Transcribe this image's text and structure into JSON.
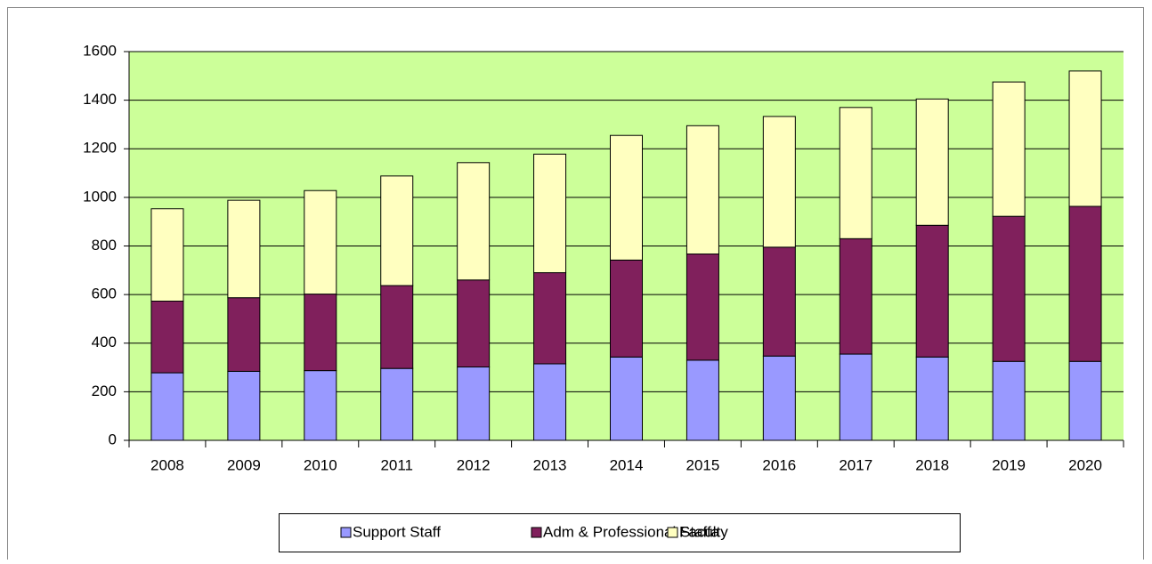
{
  "chart_data": {
    "type": "stacked_bar",
    "categories": [
      "2008",
      "2009",
      "2010",
      "2011",
      "2012",
      "2013",
      "2014",
      "2015",
      "2016",
      "2017",
      "2018",
      "2019",
      "2020"
    ],
    "series": [
      {
        "name": "Support Staff",
        "color": "#9999ff",
        "values": [
          278,
          284,
          287,
          296,
          302,
          315,
          343,
          330,
          347,
          355,
          343,
          325,
          325
        ]
      },
      {
        "name": "Adm & Professional Staffa",
        "color": "#80205c",
        "values": [
          295,
          303,
          315,
          341,
          358,
          375,
          399,
          437,
          448,
          475,
          542,
          597,
          638
        ]
      },
      {
        "name": "Faculty",
        "color": "#ffffc0",
        "values": [
          380,
          401,
          426,
          451,
          483,
          488,
          513,
          528,
          538,
          540,
          520,
          553,
          557
        ]
      }
    ],
    "ylim": [
      0,
      1600
    ],
    "yticks": [
      0,
      200,
      400,
      600,
      800,
      1000,
      1200,
      1400,
      1600
    ],
    "grid": true,
    "plot_background": "#ccff99",
    "legend": "bottom"
  }
}
